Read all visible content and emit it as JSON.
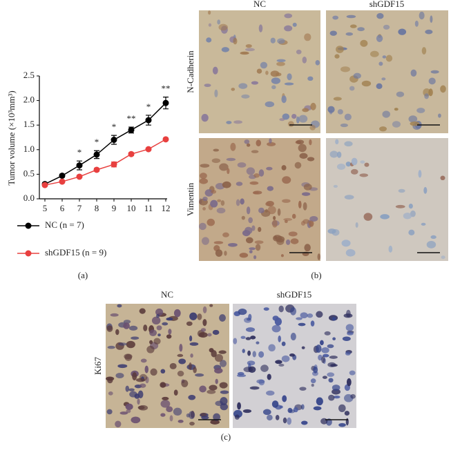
{
  "chart_data": {
    "type": "line",
    "ylabel": "Tumor volume (×10³mm³)",
    "x": [
      5,
      6,
      7,
      8,
      9,
      10,
      11,
      12
    ],
    "xlim": [
      5,
      12
    ],
    "xticks": [
      5,
      6,
      7,
      8,
      9,
      10,
      11,
      12
    ],
    "ylim": [
      0,
      2.5
    ],
    "yticks": [
      {
        "value": 0,
        "label": "0.0"
      },
      0.5,
      {
        "value": 1,
        "label": "1.0"
      },
      1.5,
      {
        "value": 2,
        "label": "2.0"
      },
      2.5
    ],
    "series": [
      {
        "name": "NC (n = 7)",
        "color": "#000000",
        "values": [
          0.3,
          0.47,
          0.68,
          0.9,
          1.2,
          1.4,
          1.6,
          1.95
        ],
        "errors": [
          0.03,
          0.03,
          0.09,
          0.08,
          0.09,
          0.06,
          0.1,
          0.12
        ]
      },
      {
        "name": "shGDF15 (n = 9)",
        "color": "#e8403f",
        "values": [
          0.28,
          0.35,
          0.45,
          0.59,
          0.7,
          0.91,
          1.01,
          1.21
        ],
        "errors": [
          0.02,
          0.02,
          0.02,
          0.03,
          0.05,
          0.03,
          0.02,
          0.02
        ]
      }
    ],
    "annotations": [
      {
        "x": 7,
        "label": "*"
      },
      {
        "x": 8,
        "label": "*"
      },
      {
        "x": 9,
        "label": "*"
      },
      {
        "x": 10,
        "label": "**"
      },
      {
        "x": 11,
        "label": "*"
      },
      {
        "x": 12,
        "label": "**"
      }
    ]
  },
  "panel_labels": [
    "(a)",
    "(b)",
    "(c)"
  ],
  "panel_b": {
    "columns": [
      "NC",
      "shGDF15"
    ],
    "rows": [
      "N-Cadherin",
      "Vimentin"
    ]
  },
  "panel_c": {
    "columns": [
      "NC",
      "shGDF15"
    ],
    "row": "Ki67"
  }
}
